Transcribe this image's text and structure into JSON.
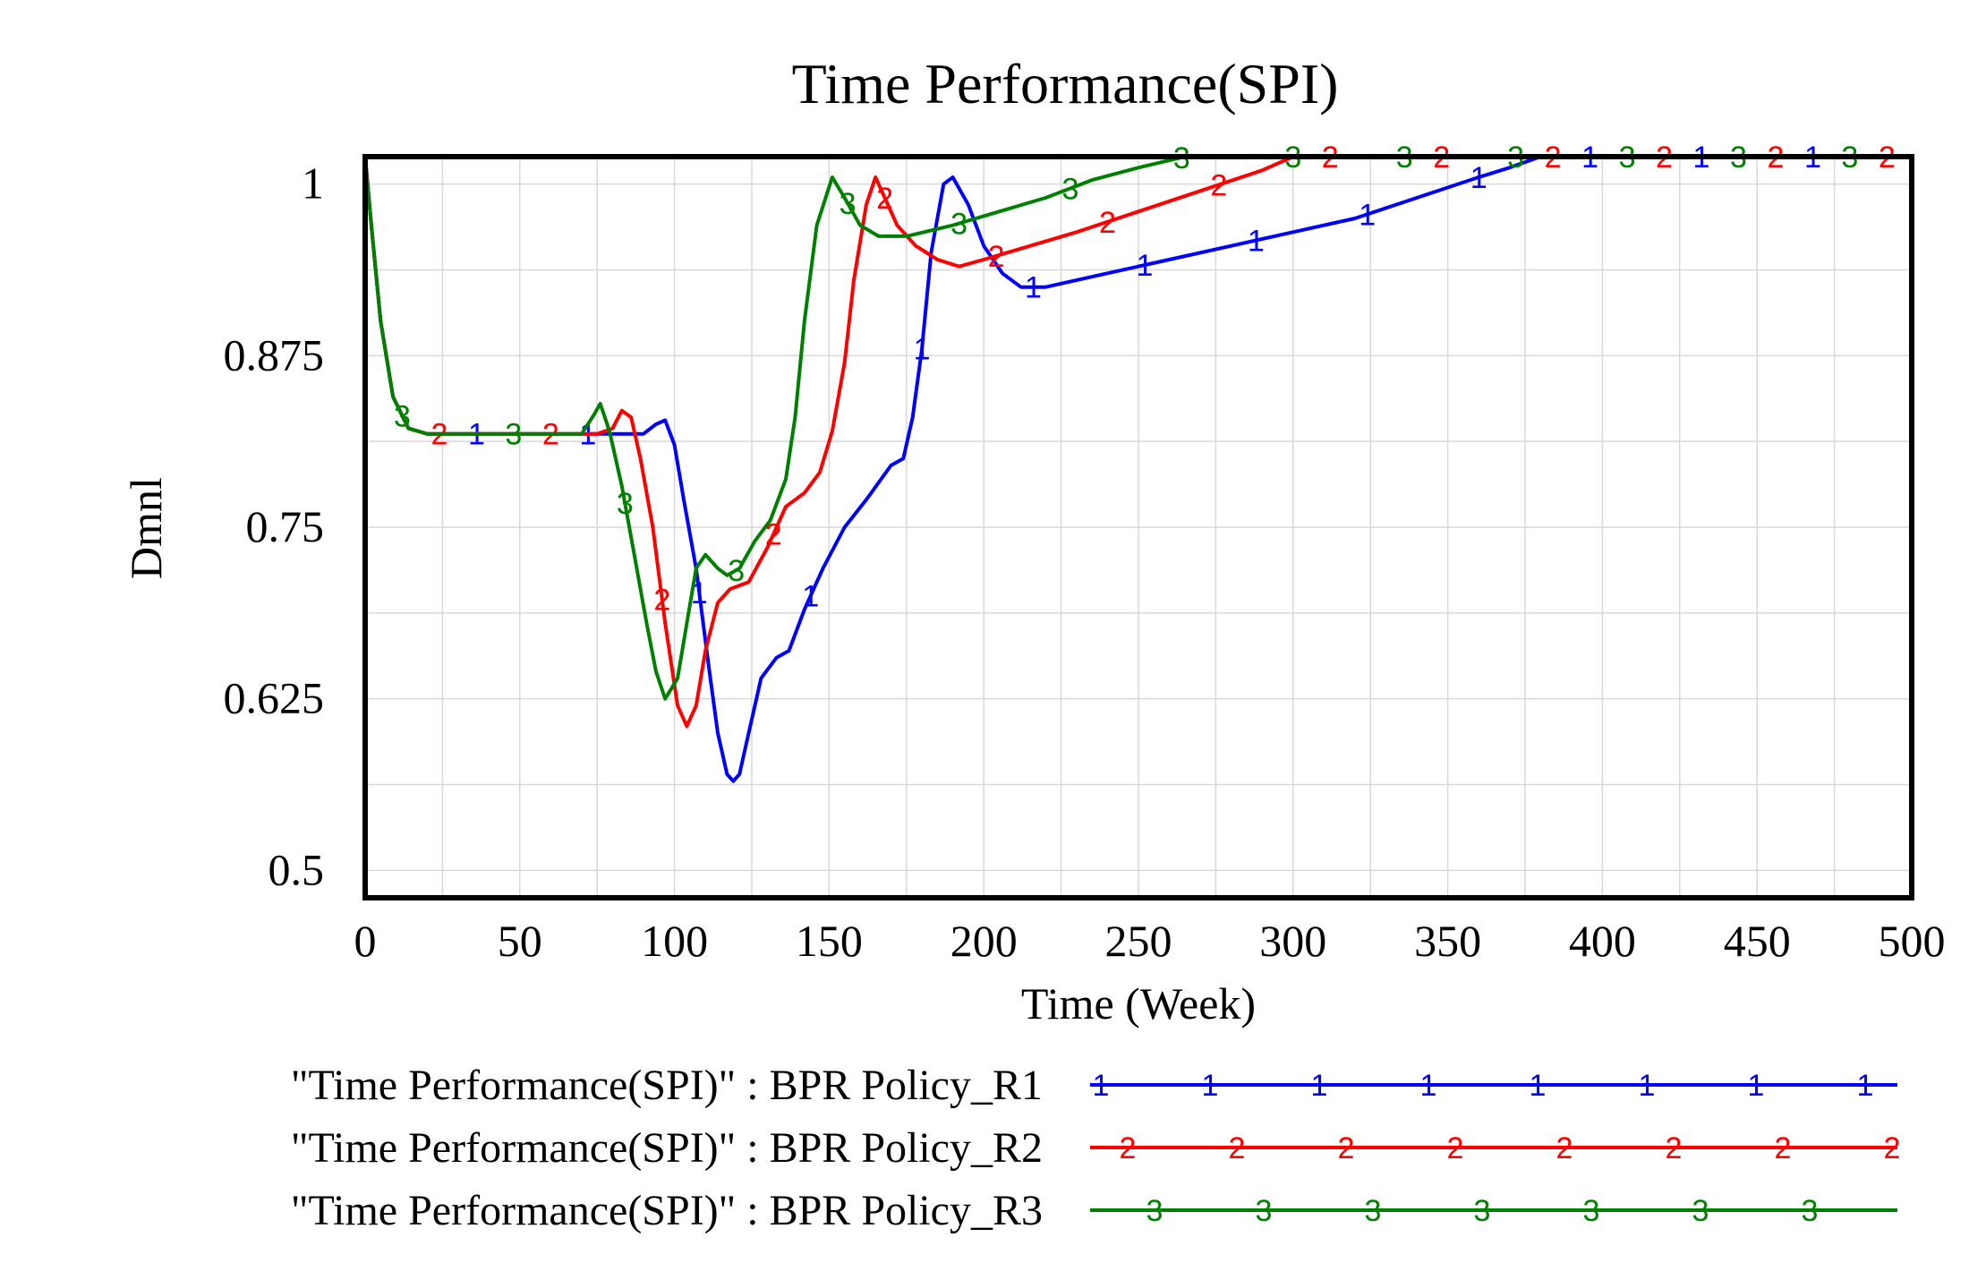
{
  "chart_data": {
    "type": "line",
    "title": "Time Performance(SPI)",
    "xlabel": "Time (Week)",
    "ylabel": "Dmnl",
    "xlim": [
      0,
      500
    ],
    "ylim": [
      0.48,
      1.02
    ],
    "x_ticks": [
      0,
      50,
      100,
      150,
      200,
      250,
      300,
      350,
      400,
      450,
      500
    ],
    "y_ticks": [
      0.5,
      0.625,
      0.75,
      0.875,
      1
    ],
    "y_tick_labels": [
      "0.5",
      "0.625",
      "0.75",
      "0.875",
      "1"
    ],
    "grid": true,
    "legend_position": "bottom",
    "series": [
      {
        "name": "\"Time Performance(SPI)\" : BPR Policy_R1",
        "marker": "1",
        "color": "#0000ff",
        "points": [
          [
            0,
            1.02
          ],
          [
            2,
            0.97
          ],
          [
            5,
            0.9
          ],
          [
            9,
            0.845
          ],
          [
            14,
            0.822
          ],
          [
            20,
            0.818
          ],
          [
            40,
            0.818
          ],
          [
            60,
            0.818
          ],
          [
            80,
            0.818
          ],
          [
            90,
            0.818
          ],
          [
            94,
            0.825
          ],
          [
            97,
            0.828
          ],
          [
            100,
            0.81
          ],
          [
            103,
            0.77
          ],
          [
            107,
            0.72
          ],
          [
            111,
            0.65
          ],
          [
            114,
            0.6
          ],
          [
            117,
            0.57
          ],
          [
            119,
            0.565
          ],
          [
            121,
            0.57
          ],
          [
            124,
            0.6
          ],
          [
            128,
            0.64
          ],
          [
            133,
            0.655
          ],
          [
            137,
            0.66
          ],
          [
            142,
            0.69
          ],
          [
            148,
            0.72
          ],
          [
            155,
            0.75
          ],
          [
            162,
            0.77
          ],
          [
            170,
            0.795
          ],
          [
            174,
            0.8
          ],
          [
            177,
            0.83
          ],
          [
            180,
            0.88
          ],
          [
            183,
            0.95
          ],
          [
            187,
            1.0
          ],
          [
            190,
            1.005
          ],
          [
            195,
            0.985
          ],
          [
            200,
            0.955
          ],
          [
            206,
            0.935
          ],
          [
            212,
            0.925
          ],
          [
            220,
            0.925
          ],
          [
            240,
            0.935
          ],
          [
            260,
            0.945
          ],
          [
            280,
            0.955
          ],
          [
            300,
            0.965
          ],
          [
            320,
            0.975
          ],
          [
            340,
            0.99
          ],
          [
            360,
            1.005
          ],
          [
            370,
            1.012
          ],
          [
            380,
            1.02
          ],
          [
            400,
            1.02
          ],
          [
            450,
            1.02
          ],
          [
            500,
            1.02
          ]
        ]
      },
      {
        "name": "\"Time Performance(SPI)\" : BPR Policy_R2",
        "marker": "2",
        "color": "#ff0000",
        "points": [
          [
            0,
            1.02
          ],
          [
            2,
            0.97
          ],
          [
            5,
            0.9
          ],
          [
            9,
            0.845
          ],
          [
            14,
            0.822
          ],
          [
            20,
            0.818
          ],
          [
            40,
            0.818
          ],
          [
            60,
            0.818
          ],
          [
            75,
            0.818
          ],
          [
            80,
            0.822
          ],
          [
            83,
            0.835
          ],
          [
            86,
            0.83
          ],
          [
            89,
            0.8
          ],
          [
            93,
            0.75
          ],
          [
            97,
            0.68
          ],
          [
            101,
            0.62
          ],
          [
            104,
            0.605
          ],
          [
            107,
            0.62
          ],
          [
            110,
            0.66
          ],
          [
            114,
            0.695
          ],
          [
            118,
            0.705
          ],
          [
            124,
            0.71
          ],
          [
            130,
            0.735
          ],
          [
            136,
            0.765
          ],
          [
            142,
            0.775
          ],
          [
            147,
            0.79
          ],
          [
            151,
            0.82
          ],
          [
            155,
            0.87
          ],
          [
            158,
            0.93
          ],
          [
            162,
            0.985
          ],
          [
            165,
            1.005
          ],
          [
            168,
            0.99
          ],
          [
            172,
            0.97
          ],
          [
            178,
            0.955
          ],
          [
            185,
            0.945
          ],
          [
            192,
            0.94
          ],
          [
            200,
            0.945
          ],
          [
            215,
            0.955
          ],
          [
            230,
            0.965
          ],
          [
            250,
            0.98
          ],
          [
            270,
            0.995
          ],
          [
            290,
            1.01
          ],
          [
            300,
            1.02
          ],
          [
            350,
            1.02
          ],
          [
            400,
            1.02
          ],
          [
            450,
            1.02
          ],
          [
            500,
            1.02
          ]
        ]
      },
      {
        "name": "\"Time Performance(SPI)\" : BPR Policy_R3",
        "marker": "3",
        "color": "#008000",
        "points": [
          [
            0,
            1.02
          ],
          [
            2,
            0.97
          ],
          [
            5,
            0.9
          ],
          [
            9,
            0.845
          ],
          [
            14,
            0.822
          ],
          [
            20,
            0.818
          ],
          [
            40,
            0.818
          ],
          [
            60,
            0.818
          ],
          [
            70,
            0.818
          ],
          [
            74,
            0.832
          ],
          [
            76,
            0.84
          ],
          [
            79,
            0.82
          ],
          [
            83,
            0.78
          ],
          [
            87,
            0.73
          ],
          [
            91,
            0.68
          ],
          [
            94,
            0.645
          ],
          [
            97,
            0.625
          ],
          [
            101,
            0.64
          ],
          [
            104,
            0.68
          ],
          [
            107,
            0.72
          ],
          [
            110,
            0.73
          ],
          [
            114,
            0.72
          ],
          [
            117,
            0.715
          ],
          [
            121,
            0.72
          ],
          [
            126,
            0.74
          ],
          [
            131,
            0.755
          ],
          [
            136,
            0.785
          ],
          [
            139,
            0.83
          ],
          [
            142,
            0.9
          ],
          [
            146,
            0.97
          ],
          [
            151,
            1.005
          ],
          [
            155,
            0.99
          ],
          [
            160,
            0.97
          ],
          [
            166,
            0.962
          ],
          [
            175,
            0.962
          ],
          [
            190,
            0.97
          ],
          [
            205,
            0.98
          ],
          [
            220,
            0.99
          ],
          [
            235,
            1.003
          ],
          [
            250,
            1.012
          ],
          [
            265,
            1.02
          ],
          [
            300,
            1.02
          ],
          [
            350,
            1.02
          ],
          [
            400,
            1.02
          ],
          [
            450,
            1.02
          ],
          [
            500,
            1.02
          ]
        ]
      }
    ]
  }
}
